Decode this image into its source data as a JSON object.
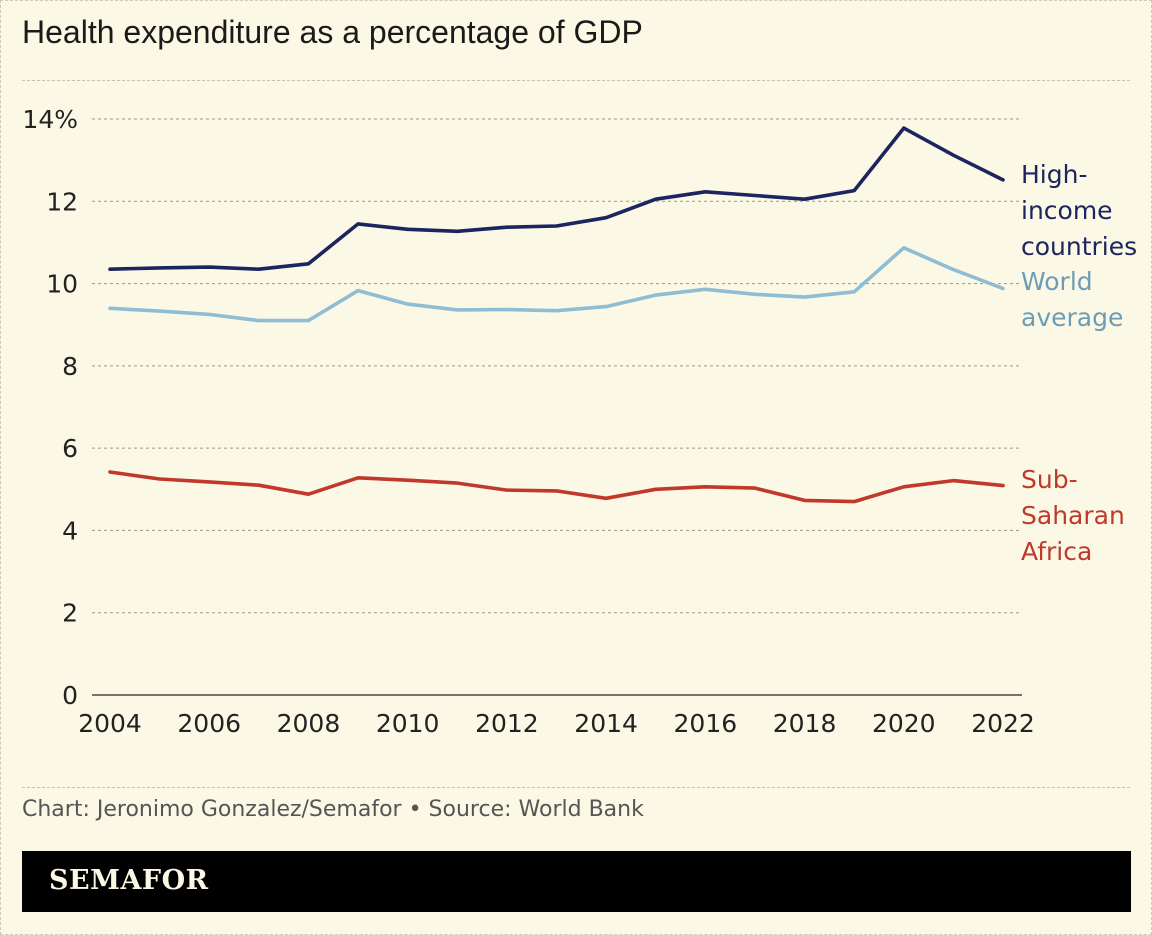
{
  "title": "Health expenditure as a percentage of GDP",
  "source": "Chart: Jeronimo Gonzalez/Semafor • Source: World Bank",
  "logo": "SEMAFOR",
  "chart_data": {
    "type": "line",
    "title": "Health expenditure as a percentage of GDP",
    "xlabel": "",
    "ylabel": "",
    "x": [
      2004,
      2005,
      2006,
      2007,
      2008,
      2009,
      2010,
      2011,
      2012,
      2013,
      2014,
      2015,
      2016,
      2017,
      2018,
      2019,
      2020,
      2021,
      2022
    ],
    "xticks": [
      2004,
      2006,
      2008,
      2010,
      2012,
      2014,
      2016,
      2018,
      2020,
      2022
    ],
    "yticks": [
      0,
      2,
      4,
      6,
      8,
      10,
      12,
      14
    ],
    "ytick_labels": [
      "0",
      "2",
      "4",
      "6",
      "8",
      "10",
      "12",
      "14%"
    ],
    "ylim": [
      0,
      14
    ],
    "xlim": [
      2004,
      2022
    ],
    "grid": true,
    "legend": "direct labels at right end of lines",
    "series": [
      {
        "name": "High-income countries",
        "label_lines": [
          "High-",
          "income",
          "countries"
        ],
        "color": "#1c2560",
        "values": [
          10.35,
          10.38,
          10.4,
          10.35,
          10.48,
          11.45,
          11.32,
          11.27,
          11.37,
          11.4,
          11.6,
          12.05,
          12.23,
          12.14,
          12.05,
          12.26,
          13.78,
          13.12,
          12.52
        ]
      },
      {
        "name": "World average",
        "label_lines": [
          "World",
          "average"
        ],
        "color": "#8fbdd3",
        "label_color": "#6d9db5",
        "values": [
          9.4,
          9.33,
          9.25,
          9.1,
          9.1,
          9.83,
          9.5,
          9.36,
          9.37,
          9.34,
          9.44,
          9.72,
          9.86,
          9.74,
          9.67,
          9.8,
          10.87,
          10.34,
          9.88
        ]
      },
      {
        "name": "Sub-Saharan Africa",
        "label_lines": [
          "Sub-",
          "Saharan",
          "Africa"
        ],
        "color": "#c0392b",
        "values": [
          5.42,
          5.25,
          5.18,
          5.1,
          4.88,
          5.28,
          5.22,
          5.15,
          4.98,
          4.96,
          4.78,
          5.0,
          5.06,
          5.03,
          4.73,
          4.7,
          5.06,
          5.21,
          5.09
        ]
      }
    ]
  }
}
